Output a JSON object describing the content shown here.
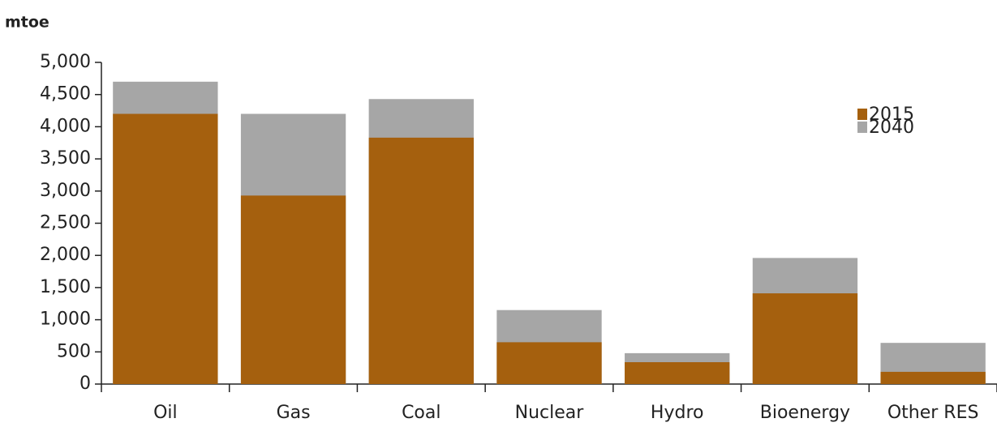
{
  "chart_data": {
    "type": "bar",
    "overlap": true,
    "y_label": "mtoe",
    "categories": [
      "Oil",
      "Gas",
      "Coal",
      "Nuclear",
      "Hydro",
      "Bioenergy",
      "Other RES"
    ],
    "series": [
      {
        "name": "2015",
        "color": "#a5600e",
        "values": [
          4200,
          2930,
          3830,
          650,
          340,
          1410,
          190
        ]
      },
      {
        "name": "2040",
        "color": "#a6a6a6",
        "values": [
          4700,
          4200,
          4430,
          1150,
          480,
          1960,
          640
        ]
      }
    ],
    "ylim": [
      0,
      5000
    ],
    "yticks": [
      0,
      500,
      {
        "value": 1000,
        "label": "1,000"
      },
      {
        "value": 1500,
        "label": "1,500"
      },
      {
        "value": 2000,
        "label": "2,000"
      },
      {
        "value": 2500,
        "label": "2,500"
      },
      {
        "value": 3000,
        "label": "3,000"
      },
      {
        "value": 3500,
        "label": "3,500"
      },
      {
        "value": 4000,
        "label": "4,000"
      },
      {
        "value": 4500,
        "label": "4,500"
      },
      {
        "value": 5000,
        "label": "5,000"
      }
    ],
    "legend": "top-right"
  }
}
